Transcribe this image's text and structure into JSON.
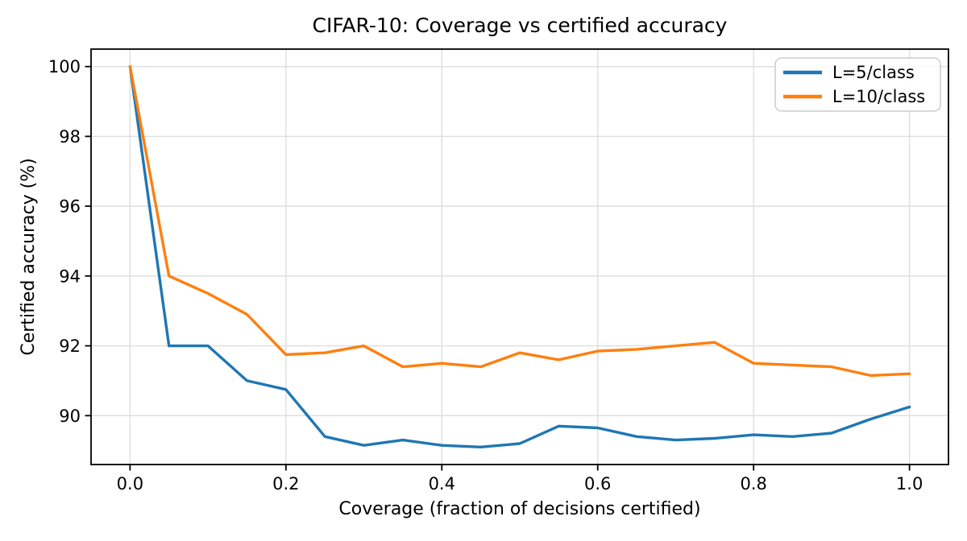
{
  "chart_data": {
    "type": "line",
    "title": "CIFAR-10: Coverage vs certified accuracy",
    "xlabel": "Coverage (fraction of decisions certified)",
    "ylabel": "Certified accuracy (%)",
    "grid": true,
    "legend_position": "upper right",
    "xlim": [
      -0.05,
      1.05
    ],
    "ylim": [
      88.6,
      100.5
    ],
    "xticks": {
      "values": [
        0.0,
        0.2,
        0.4,
        0.6,
        0.8,
        1.0
      ],
      "labels": [
        "0.0",
        "0.2",
        "0.4",
        "0.6",
        "0.8",
        "1.0"
      ]
    },
    "yticks": {
      "values": [
        90,
        92,
        94,
        96,
        98,
        100
      ],
      "labels": [
        "90",
        "92",
        "94",
        "96",
        "98",
        "100"
      ]
    },
    "x": [
      0.0,
      0.05,
      0.1,
      0.15,
      0.2,
      0.25,
      0.3,
      0.35,
      0.4,
      0.45,
      0.5,
      0.55,
      0.6,
      0.65,
      0.7,
      0.75,
      0.8,
      0.85,
      0.9,
      0.95,
      1.0
    ],
    "series": [
      {
        "name": "L=5/class",
        "color": "#1f77b4",
        "values": [
          100.0,
          92.0,
          92.0,
          91.0,
          90.75,
          89.4,
          89.15,
          89.3,
          89.15,
          89.1,
          89.2,
          89.7,
          89.65,
          89.4,
          89.3,
          89.35,
          89.45,
          89.4,
          89.5,
          89.9,
          90.25
        ]
      },
      {
        "name": "L=10/class",
        "color": "#ff7f0e",
        "values": [
          100.0,
          94.0,
          93.5,
          92.9,
          91.75,
          91.8,
          92.0,
          91.4,
          91.5,
          91.4,
          91.8,
          91.6,
          91.85,
          91.9,
          92.0,
          92.1,
          91.5,
          91.45,
          91.4,
          91.15,
          91.2
        ]
      }
    ]
  }
}
